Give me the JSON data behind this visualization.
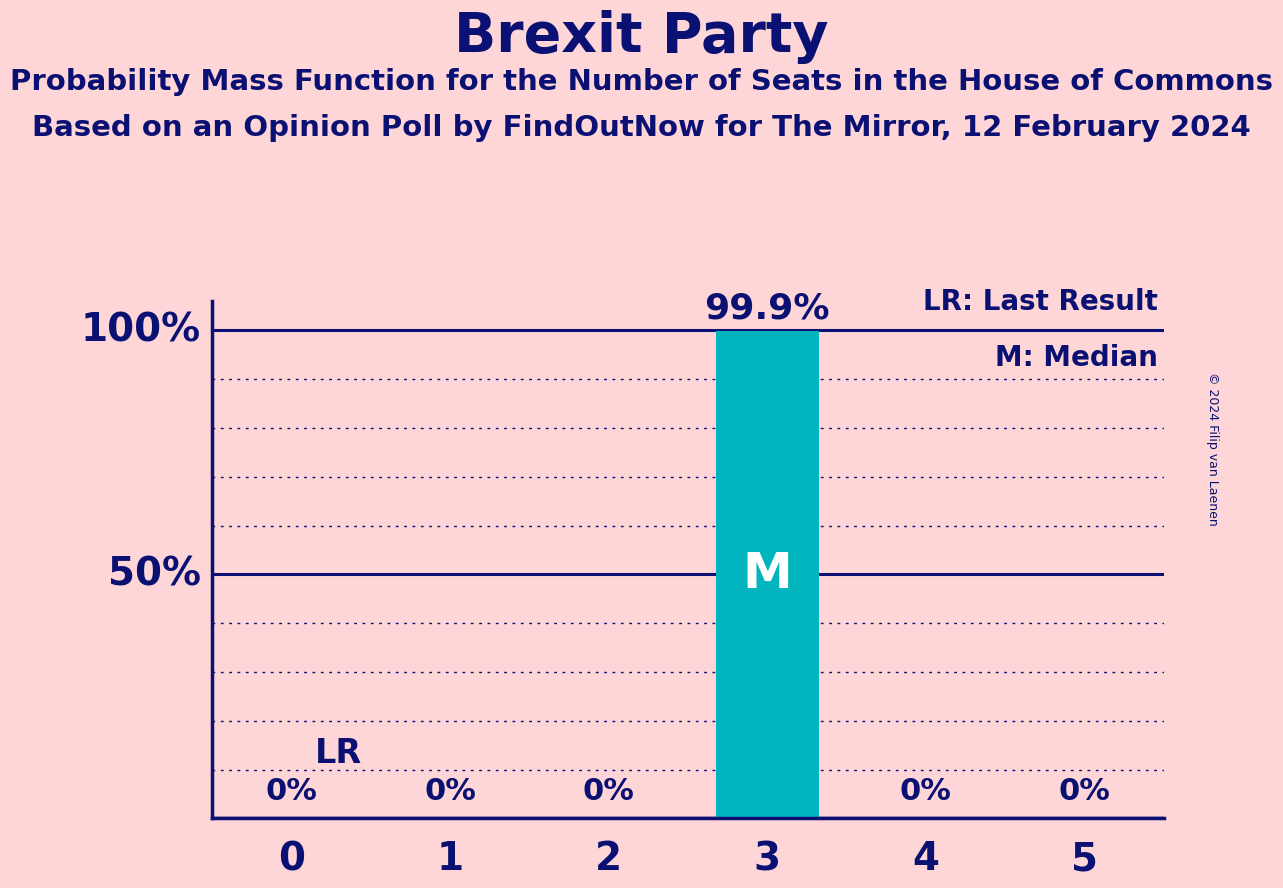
{
  "title": "Brexit Party",
  "subtitle1": "Probability Mass Function for the Number of Seats in the House of Commons",
  "subtitle2": "Based on an Opinion Poll by FindOutNow for The Mirror, 12 February 2024",
  "copyright": "© 2024 Filip van Laenen",
  "background_color": "#FFD6D8",
  "bar_color": "#00B5BD",
  "text_color": "#0A1172",
  "categories": [
    0,
    1,
    2,
    3,
    4,
    5
  ],
  "values": [
    0.0,
    0.0,
    0.0,
    99.9,
    0.0,
    0.0
  ],
  "bar_labels": [
    "0%",
    "0%",
    "0%",
    "",
    "0%",
    "0%"
  ],
  "bar_top_labels": [
    "",
    "",
    "",
    "99.9%",
    "",
    ""
  ],
  "median_seat": 3,
  "legend_lr": "LR: Last Result",
  "legend_m": "M: Median",
  "ylabel_100": "100%",
  "ylabel_50": "50%",
  "yticks_major": [
    0,
    50,
    100
  ],
  "yticks_minor": [
    10,
    20,
    30,
    40,
    60,
    70,
    80,
    90
  ],
  "grid_color": "#0A1172",
  "axis_color": "#0A1172",
  "bar_width": 0.65
}
